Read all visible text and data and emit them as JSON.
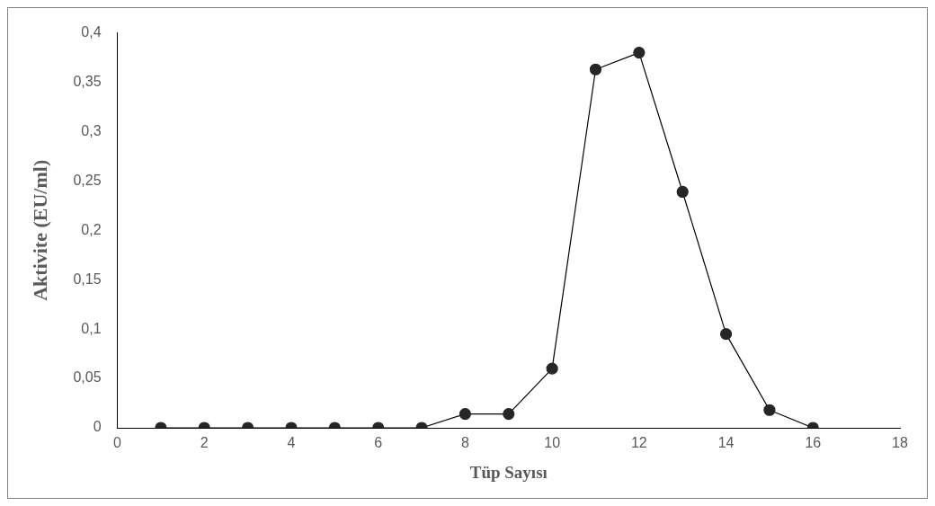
{
  "chart_data": {
    "type": "line",
    "xlabel": "Tüp Sayısı",
    "ylabel": "Aktivite (EU/ml)",
    "x": [
      1,
      2,
      3,
      4,
      5,
      6,
      7,
      8,
      9,
      10,
      11,
      12,
      13,
      14,
      15,
      16
    ],
    "values": [
      0,
      0,
      0,
      0,
      0,
      0,
      0,
      0.014,
      0.014,
      0.06,
      0.363,
      0.38,
      0.239,
      0.095,
      0.018,
      0
    ],
    "color": "#262626",
    "marker": "circle",
    "grid": false,
    "legend": false,
    "xlim": [
      0,
      18
    ],
    "xticks": [
      0,
      2,
      4,
      6,
      8,
      10,
      12,
      14,
      16,
      18
    ],
    "ylim": [
      0,
      0.4
    ],
    "yticks": [
      0,
      {
        "value": 0.05,
        "label": "0,05"
      },
      {
        "value": 0.1,
        "label": "0,1"
      },
      {
        "value": 0.15,
        "label": "0,15"
      },
      {
        "value": 0.2,
        "label": "0,2"
      },
      {
        "value": 0.25,
        "label": "0,25"
      },
      {
        "value": 0.3,
        "label": "0,3"
      },
      {
        "value": 0.35,
        "label": "0,35"
      },
      {
        "value": 0.4,
        "label": "0,4"
      }
    ]
  }
}
